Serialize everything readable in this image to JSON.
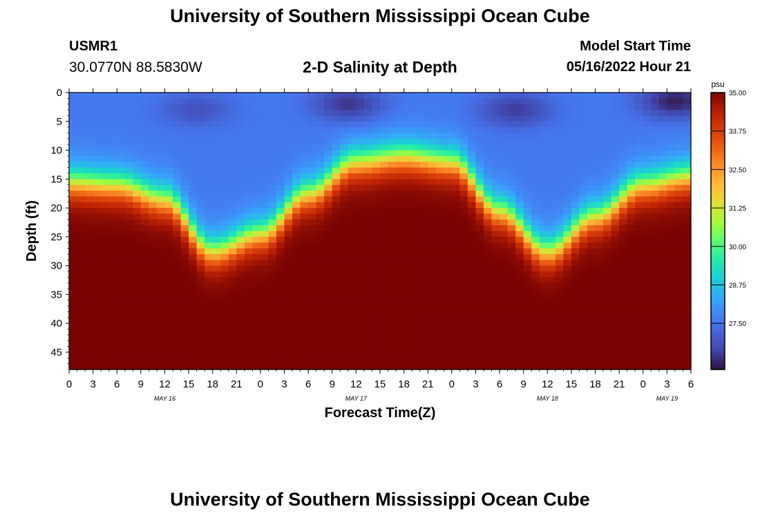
{
  "header": {
    "title": "University of Southern Mississippi Ocean Cube",
    "station_id": "USMR1",
    "coordinates": "30.0770N  88.5830W",
    "subtitle": "2-D Salinity at Depth",
    "model_start_label": "Model Start Time",
    "model_start_value": "05/16/2022 Hour 21"
  },
  "footer": {
    "title": "University of Southern Mississippi Ocean Cube"
  },
  "chart_data": {
    "type": "heatmap",
    "title": "2-D Salinity at Depth",
    "xlabel": "Forecast Time(Z)",
    "ylabel": "Depth (ft)",
    "x_tick_labels": [
      "0",
      "3",
      "6",
      "9",
      "12",
      "15",
      "18",
      "21",
      "0",
      "3",
      "6",
      "9",
      "12",
      "15",
      "18",
      "21",
      "0",
      "3",
      "6",
      "9",
      "12",
      "15",
      "18",
      "21",
      "0",
      "3",
      "6"
    ],
    "x_hours_range": [
      0,
      78
    ],
    "date_labels": [
      {
        "label": "MAY 16",
        "hour": 12
      },
      {
        "label": "MAY 17",
        "hour": 36
      },
      {
        "label": "MAY 18",
        "hour": 60
      },
      {
        "label": "MAY 19",
        "hour": 75
      }
    ],
    "y_ticks": [
      0,
      5,
      10,
      15,
      20,
      25,
      30,
      35,
      40,
      45
    ],
    "ylim": [
      0,
      48
    ],
    "colorbar": {
      "unit": "psu",
      "min": 26.0,
      "max": 35.0,
      "tick_labels": [
        "35.00",
        "33.75",
        "32.50",
        "31.25",
        "30.00",
        "28.75",
        "27.50"
      ],
      "tick_values": [
        35.0,
        33.75,
        32.5,
        31.25,
        30.0,
        28.75,
        27.5
      ]
    },
    "halocline_depth_ft_by_hour": [
      {
        "hour": 0,
        "depth": 16
      },
      {
        "hour": 6,
        "depth": 16.5
      },
      {
        "hour": 12,
        "depth": 19
      },
      {
        "hour": 18,
        "depth": 28
      },
      {
        "hour": 24,
        "depth": 25
      },
      {
        "hour": 30,
        "depth": 18
      },
      {
        "hour": 36,
        "depth": 12.5
      },
      {
        "hour": 42,
        "depth": 11.5
      },
      {
        "hour": 48,
        "depth": 12.5
      },
      {
        "hour": 54,
        "depth": 21
      },
      {
        "hour": 60,
        "depth": 28
      },
      {
        "hour": 66,
        "depth": 22
      },
      {
        "hour": 72,
        "depth": 16.5
      },
      {
        "hour": 78,
        "depth": 15
      }
    ],
    "surface_salinity_psu": 27.6,
    "bottom_salinity_psu": 35.0,
    "low_salinity_patches": [
      {
        "hour": 16,
        "depth": 3,
        "psu": 26.8
      },
      {
        "hour": 35,
        "depth": 2,
        "psu": 26.3
      },
      {
        "hour": 56,
        "depth": 3,
        "psu": 26.4
      },
      {
        "hour": 76,
        "depth": 1.5,
        "psu": 26.0
      }
    ]
  }
}
